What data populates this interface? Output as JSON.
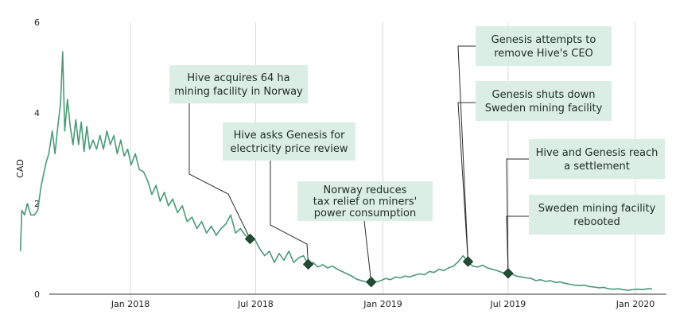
{
  "colors": {
    "line": "#4a9a76",
    "marker": "#234d33",
    "annotation_box": "#daeee6",
    "connector": "#2b2b2b",
    "grid": "#d9d9d9"
  },
  "chart_data": {
    "type": "line",
    "title": "",
    "xlabel": "",
    "ylabel": "CAD",
    "x_range": [
      "2017-07-20",
      "2020-02-15"
    ],
    "ylim": [
      0,
      6
    ],
    "y_ticks": [
      0,
      2,
      4,
      6
    ],
    "y_tick_labels": [
      "0",
      "2",
      "4",
      "6"
    ],
    "x_ticks": [
      {
        "date": "2018-01-01",
        "label": "Jan 2018"
      },
      {
        "date": "2018-07-01",
        "label": "Jul 2018"
      },
      {
        "date": "2019-01-01",
        "label": "Jan 2019"
      },
      {
        "date": "2019-07-01",
        "label": "Jul 2019"
      },
      {
        "date": "2020-01-01",
        "label": "Jan 2020"
      }
    ],
    "grid": "vertical",
    "series": [
      {
        "points": [
          [
            "2017-07-26",
            0.95
          ],
          [
            "2017-07-28",
            1.85
          ],
          [
            "2017-08-01",
            1.75
          ],
          [
            "2017-08-05",
            2.0
          ],
          [
            "2017-08-10",
            1.75
          ],
          [
            "2017-08-15",
            1.75
          ],
          [
            "2017-08-20",
            1.85
          ],
          [
            "2017-08-25",
            2.4
          ],
          [
            "2017-09-01",
            2.9
          ],
          [
            "2017-09-05",
            3.1
          ],
          [
            "2017-09-10",
            3.6
          ],
          [
            "2017-09-14",
            3.1
          ],
          [
            "2017-09-18",
            3.7
          ],
          [
            "2017-09-22",
            4.2
          ],
          [
            "2017-09-25",
            5.35
          ],
          [
            "2017-09-28",
            3.6
          ],
          [
            "2017-10-02",
            4.3
          ],
          [
            "2017-10-06",
            3.7
          ],
          [
            "2017-10-10",
            3.3
          ],
          [
            "2017-10-14",
            3.85
          ],
          [
            "2017-10-18",
            3.3
          ],
          [
            "2017-10-22",
            3.8
          ],
          [
            "2017-10-26",
            3.15
          ],
          [
            "2017-10-30",
            3.7
          ],
          [
            "2017-11-03",
            3.2
          ],
          [
            "2017-11-08",
            3.4
          ],
          [
            "2017-11-13",
            3.2
          ],
          [
            "2017-11-18",
            3.5
          ],
          [
            "2017-11-23",
            3.2
          ],
          [
            "2017-11-28",
            3.6
          ],
          [
            "2017-12-03",
            3.3
          ],
          [
            "2017-12-08",
            3.5
          ],
          [
            "2017-12-13",
            3.1
          ],
          [
            "2017-12-18",
            3.4
          ],
          [
            "2017-12-23",
            3.05
          ],
          [
            "2017-12-28",
            3.2
          ],
          [
            "2018-01-02",
            2.85
          ],
          [
            "2018-01-08",
            3.1
          ],
          [
            "2018-01-14",
            2.75
          ],
          [
            "2018-01-20",
            2.7
          ],
          [
            "2018-01-26",
            2.5
          ],
          [
            "2018-02-01",
            2.2
          ],
          [
            "2018-02-07",
            2.4
          ],
          [
            "2018-02-13",
            2.05
          ],
          [
            "2018-02-19",
            2.25
          ],
          [
            "2018-02-25",
            1.95
          ],
          [
            "2018-03-03",
            2.1
          ],
          [
            "2018-03-10",
            1.8
          ],
          [
            "2018-03-17",
            1.95
          ],
          [
            "2018-03-24",
            1.6
          ],
          [
            "2018-03-31",
            1.7
          ],
          [
            "2018-04-07",
            1.45
          ],
          [
            "2018-04-14",
            1.6
          ],
          [
            "2018-04-21",
            1.35
          ],
          [
            "2018-04-28",
            1.5
          ],
          [
            "2018-05-05",
            1.3
          ],
          [
            "2018-05-12",
            1.45
          ],
          [
            "2018-05-19",
            1.55
          ],
          [
            "2018-05-26",
            1.75
          ],
          [
            "2018-06-02",
            1.35
          ],
          [
            "2018-06-09",
            1.45
          ],
          [
            "2018-06-16",
            1.3
          ],
          [
            "2018-06-23",
            1.22
          ],
          [
            "2018-06-30",
            1.2
          ],
          [
            "2018-07-07",
            1.0
          ],
          [
            "2018-07-14",
            0.85
          ],
          [
            "2018-07-21",
            0.95
          ],
          [
            "2018-07-28",
            0.7
          ],
          [
            "2018-08-04",
            0.9
          ],
          [
            "2018-08-11",
            0.75
          ],
          [
            "2018-08-18",
            0.95
          ],
          [
            "2018-08-25",
            0.7
          ],
          [
            "2018-09-01",
            0.8
          ],
          [
            "2018-09-08",
            0.85
          ],
          [
            "2018-09-15",
            0.66
          ],
          [
            "2018-09-22",
            0.7
          ],
          [
            "2018-09-29",
            0.6
          ],
          [
            "2018-10-06",
            0.65
          ],
          [
            "2018-10-13",
            0.58
          ],
          [
            "2018-10-20",
            0.62
          ],
          [
            "2018-10-27",
            0.55
          ],
          [
            "2018-11-03",
            0.5
          ],
          [
            "2018-11-10",
            0.45
          ],
          [
            "2018-11-17",
            0.4
          ],
          [
            "2018-11-24",
            0.33
          ],
          [
            "2018-12-01",
            0.3
          ],
          [
            "2018-12-08",
            0.27
          ],
          [
            "2018-12-15",
            0.25
          ],
          [
            "2018-12-22",
            0.27
          ],
          [
            "2018-12-29",
            0.3
          ],
          [
            "2019-01-05",
            0.35
          ],
          [
            "2019-01-12",
            0.32
          ],
          [
            "2019-01-19",
            0.38
          ],
          [
            "2019-01-26",
            0.36
          ],
          [
            "2019-02-02",
            0.4
          ],
          [
            "2019-02-09",
            0.38
          ],
          [
            "2019-02-16",
            0.42
          ],
          [
            "2019-02-23",
            0.45
          ],
          [
            "2019-03-02",
            0.43
          ],
          [
            "2019-03-09",
            0.5
          ],
          [
            "2019-03-16",
            0.48
          ],
          [
            "2019-03-23",
            0.55
          ],
          [
            "2019-03-30",
            0.52
          ],
          [
            "2019-04-06",
            0.58
          ],
          [
            "2019-04-13",
            0.62
          ],
          [
            "2019-04-20",
            0.72
          ],
          [
            "2019-04-27",
            0.85
          ],
          [
            "2019-05-04",
            0.7
          ],
          [
            "2019-05-11",
            0.62
          ],
          [
            "2019-05-18",
            0.6
          ],
          [
            "2019-05-25",
            0.64
          ],
          [
            "2019-06-01",
            0.58
          ],
          [
            "2019-06-08",
            0.55
          ],
          [
            "2019-06-15",
            0.52
          ],
          [
            "2019-06-22",
            0.48
          ],
          [
            "2019-06-29",
            0.46
          ],
          [
            "2019-07-06",
            0.45
          ],
          [
            "2019-07-13",
            0.4
          ],
          [
            "2019-07-20",
            0.38
          ],
          [
            "2019-07-27",
            0.36
          ],
          [
            "2019-08-03",
            0.35
          ],
          [
            "2019-08-10",
            0.3
          ],
          [
            "2019-08-17",
            0.32
          ],
          [
            "2019-08-24",
            0.28
          ],
          [
            "2019-08-31",
            0.3
          ],
          [
            "2019-09-07",
            0.26
          ],
          [
            "2019-09-14",
            0.27
          ],
          [
            "2019-09-21",
            0.24
          ],
          [
            "2019-09-28",
            0.22
          ],
          [
            "2019-10-05",
            0.2
          ],
          [
            "2019-10-12",
            0.19
          ],
          [
            "2019-10-19",
            0.2
          ],
          [
            "2019-10-26",
            0.17
          ],
          [
            "2019-11-02",
            0.16
          ],
          [
            "2019-11-09",
            0.14
          ],
          [
            "2019-11-16",
            0.15
          ],
          [
            "2019-11-23",
            0.12
          ],
          [
            "2019-11-30",
            0.11
          ],
          [
            "2019-12-07",
            0.12
          ],
          [
            "2019-12-14",
            0.1
          ],
          [
            "2019-12-21",
            0.09
          ],
          [
            "2019-12-28",
            0.1
          ],
          [
            "2020-01-04",
            0.11
          ],
          [
            "2020-01-11",
            0.1
          ],
          [
            "2020-01-18",
            0.12
          ],
          [
            "2020-01-25",
            0.12
          ]
        ]
      }
    ],
    "annotations": [
      {
        "id": "norway-facility",
        "lines": [
          "Hive acquires 64 ha",
          "mining facility in Norway"
        ],
        "date": "2018-06-23",
        "value": 1.22
      },
      {
        "id": "price-review",
        "lines": [
          "Hive asks Genesis for",
          "electricity price review"
        ],
        "date": "2018-09-15",
        "value": 0.66
      },
      {
        "id": "tax-relief",
        "lines": [
          "Norway reduces",
          "tax relief on miners'",
          "power consumption"
        ],
        "date": "2018-12-15",
        "value": 0.27
      },
      {
        "id": "remove-ceo",
        "lines": [
          "Genesis attempts to",
          "remove Hive's CEO"
        ],
        "date": "2019-05-04",
        "value": 0.72
      },
      {
        "id": "sweden-shutdown",
        "lines": [
          "Genesis shuts down",
          "Sweden mining facility"
        ],
        "date": "2019-05-04",
        "value": 0.72
      },
      {
        "id": "settlement",
        "lines": [
          "Hive and Genesis reach",
          "a settlement"
        ],
        "date": "2019-07-01",
        "value": 0.46
      },
      {
        "id": "sweden-reboot",
        "lines": [
          "Sweden mining facility",
          "rebooted"
        ],
        "date": "2019-07-01",
        "value": 0.46
      }
    ]
  }
}
